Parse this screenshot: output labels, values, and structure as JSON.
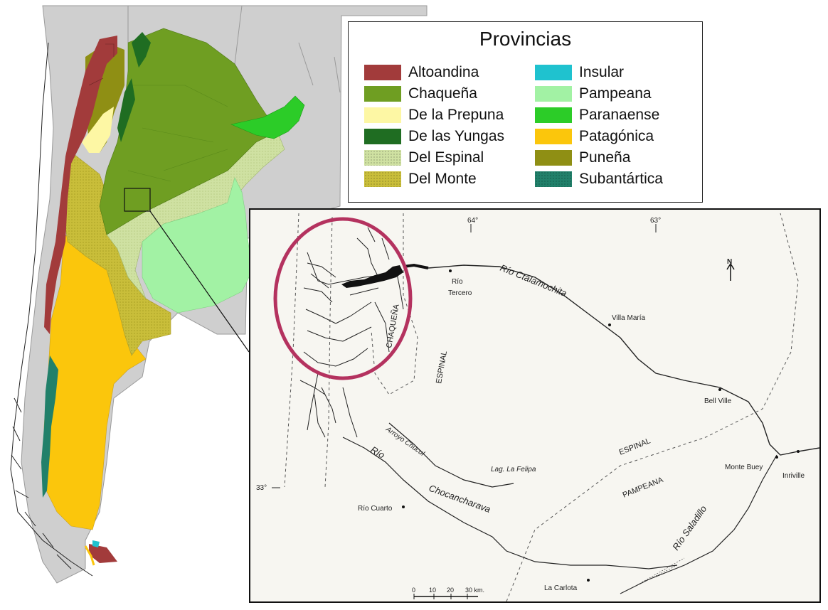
{
  "legend": {
    "title": "Provincias",
    "items": [
      {
        "label": "Altoandina",
        "color": "#a23b3b",
        "pattern": "solid"
      },
      {
        "label": "Chaqueña",
        "color": "#6f9e22",
        "pattern": "solid"
      },
      {
        "label": "De la Prepuna",
        "color": "#fdf7a4",
        "pattern": "solid"
      },
      {
        "label": "De las Yungas",
        "color": "#1f6d22",
        "pattern": "solid"
      },
      {
        "label": "Del Espinal",
        "color": "#cfe1a2",
        "pattern": "dotted"
      },
      {
        "label": "Del Monte",
        "color": "#c9be3a",
        "pattern": "dotted"
      },
      {
        "label": "Insular",
        "color": "#1fc2cf",
        "pattern": "solid"
      },
      {
        "label": "Pampeana",
        "color": "#a2f2a4",
        "pattern": "solid"
      },
      {
        "label": "Paranaense",
        "color": "#2ccc28",
        "pattern": "solid"
      },
      {
        "label": "Patagónica",
        "color": "#fbc60c",
        "pattern": "solid"
      },
      {
        "label": "Puneña",
        "color": "#8f8f14",
        "pattern": "solid"
      },
      {
        "label": "Subantártica",
        "color": "#21806a",
        "pattern": "dotted"
      }
    ]
  },
  "inset": {
    "longitude_labels": [
      "64°",
      "63°"
    ],
    "latitude_label": "33°",
    "north_label": "N",
    "region_labels": {
      "chaquena": "CHAQUEÑA",
      "espinal_upper": "ESPINAL",
      "espinal_lower": "ESPINAL",
      "pampeana": "PAMPEANA"
    },
    "rivers": {
      "ctalamochita": "Río Ctalamochita",
      "arroyo_chucul": "Arroyo Chucul",
      "rio": "Río",
      "chocancharava": "Chocancharava",
      "saladillo": "Río Saladillo"
    },
    "places": {
      "rio_tercero_1": "Río",
      "rio_tercero_2": "Tercero",
      "villa_maria": "Villa María",
      "bell_ville": "Bell Ville",
      "monte_buey": "Monte Buey",
      "inriville": "Inriville",
      "rio_cuarto": "Río Cuarto",
      "la_carlota": "La Carlota",
      "lag_la_felipa": "Lag. La Felipa"
    },
    "scale_labels": [
      "0",
      "10",
      "20",
      "30 km."
    ]
  },
  "colors": {
    "highlight_circle": "#b4325f",
    "neighbors": "#cfcfcf"
  }
}
